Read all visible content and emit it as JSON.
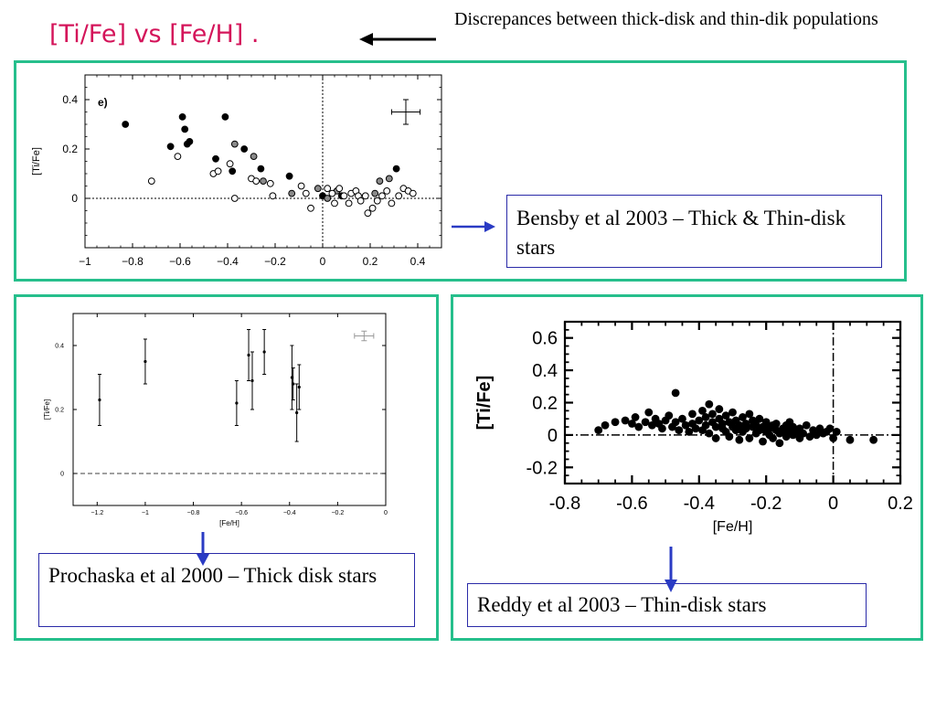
{
  "title": "[Ti/Fe] vs [Fe/H] .",
  "note": "Discrepances between thick-disk and thin-dik populations",
  "captions": {
    "bensby": "Bensby et al 2003 – Thick & Thin-disk stars",
    "prochaska": "Prochaska et al 2000 – Thick disk stars",
    "reddy": "Reddy et al 2003 – Thin-disk stars"
  },
  "colors": {
    "panel_border": "#26bf8c",
    "title": "#d4145a",
    "arrow": "#2a3bc4",
    "caption_border": "#2a2aa8"
  },
  "chart_data": [
    {
      "id": "bensby",
      "type": "scatter",
      "panel_label": "e)",
      "ylabel": "[Ti/Fe]",
      "xlim": [
        -1,
        0.5
      ],
      "ylim": [
        -0.2,
        0.5
      ],
      "xticks": [
        "−1",
        "−0.8",
        "−0.6",
        "−0.4",
        "−0.2",
        "0",
        "0.2",
        "0.4"
      ],
      "xtick_values": [
        -1,
        -0.8,
        -0.6,
        -0.4,
        -0.2,
        0,
        0.2,
        0.4
      ],
      "yticks": [
        "0",
        "0.2",
        "0.4"
      ],
      "ytick_values": [
        0,
        0.2,
        0.4
      ],
      "reference_lines": {
        "y": 0,
        "x": 0
      },
      "error_bar": {
        "x": 0.35,
        "y": 0.35,
        "xerr": 0.06,
        "yerr": 0.05
      },
      "series": [
        {
          "marker": "filled",
          "points": [
            [
              -0.83,
              0.3
            ],
            [
              -0.64,
              0.21
            ],
            [
              -0.59,
              0.33
            ],
            [
              -0.58,
              0.28
            ],
            [
              -0.57,
              0.22
            ],
            [
              -0.56,
              0.23
            ],
            [
              -0.45,
              0.16
            ],
            [
              -0.41,
              0.33
            ],
            [
              -0.38,
              0.11
            ],
            [
              -0.33,
              0.2
            ],
            [
              -0.26,
              0.12
            ],
            [
              -0.14,
              0.09
            ],
            [
              0.0,
              0.01
            ],
            [
              0.08,
              0.01
            ],
            [
              0.31,
              0.12
            ]
          ]
        },
        {
          "marker": "grey",
          "points": [
            [
              -0.37,
              0.22
            ],
            [
              -0.29,
              0.17
            ],
            [
              -0.25,
              0.07
            ],
            [
              -0.13,
              0.02
            ],
            [
              -0.02,
              0.04
            ],
            [
              0.02,
              0.0
            ],
            [
              0.06,
              0.03
            ],
            [
              0.22,
              0.02
            ],
            [
              0.24,
              0.07
            ],
            [
              0.28,
              0.08
            ]
          ]
        },
        {
          "marker": "open",
          "points": [
            [
              -0.72,
              0.07
            ],
            [
              -0.61,
              0.17
            ],
            [
              -0.46,
              0.1
            ],
            [
              -0.44,
              0.11
            ],
            [
              -0.39,
              0.14
            ],
            [
              -0.37,
              0.0
            ],
            [
              -0.3,
              0.08
            ],
            [
              -0.28,
              0.07
            ],
            [
              -0.22,
              0.06
            ],
            [
              -0.21,
              0.01
            ],
            [
              -0.09,
              0.05
            ],
            [
              -0.07,
              0.02
            ],
            [
              -0.05,
              -0.04
            ],
            [
              0.02,
              0.04
            ],
            [
              0.04,
              0.02
            ],
            [
              0.05,
              -0.02
            ],
            [
              0.07,
              0.04
            ],
            [
              0.09,
              0.01
            ],
            [
              0.11,
              -0.02
            ],
            [
              0.12,
              0.02
            ],
            [
              0.14,
              0.03
            ],
            [
              0.15,
              0.01
            ],
            [
              0.16,
              -0.01
            ],
            [
              0.18,
              0.01
            ],
            [
              0.19,
              -0.06
            ],
            [
              0.21,
              -0.04
            ],
            [
              0.23,
              -0.01
            ],
            [
              0.25,
              0.01
            ],
            [
              0.27,
              0.03
            ],
            [
              0.29,
              -0.02
            ],
            [
              0.32,
              0.01
            ],
            [
              0.34,
              0.04
            ],
            [
              0.36,
              0.03
            ],
            [
              0.38,
              0.02
            ]
          ]
        }
      ]
    },
    {
      "id": "prochaska",
      "type": "scatter",
      "xlabel": "[Fe/H]",
      "ylabel": "[Ti/Fe]",
      "xlim": [
        -1.3,
        0
      ],
      "ylim": [
        -0.1,
        0.5
      ],
      "xticks": [
        "−1.2",
        "−1",
        "−0.8",
        "−0.6",
        "−0.4",
        "−0.2",
        "0"
      ],
      "xtick_values": [
        -1.2,
        -1,
        -0.8,
        -0.6,
        -0.4,
        -0.2,
        0
      ],
      "yticks": [
        "0",
        "0.2",
        "0.4"
      ],
      "ytick_values": [
        0,
        0.2,
        0.4
      ],
      "reference_lines": {
        "y": 0
      },
      "error_bar": {
        "x": -0.09,
        "y": 0.43,
        "xerr": 0.04,
        "yerr": 0.015
      },
      "points": [
        {
          "x": -1.19,
          "y": 0.23,
          "err": 0.08
        },
        {
          "x": -1.0,
          "y": 0.35,
          "err": 0.07
        },
        {
          "x": -0.62,
          "y": 0.22,
          "err": 0.07
        },
        {
          "x": -0.57,
          "y": 0.37,
          "err": 0.08
        },
        {
          "x": -0.555,
          "y": 0.29,
          "err": 0.09
        },
        {
          "x": -0.505,
          "y": 0.38,
          "err": 0.07
        },
        {
          "x": -0.39,
          "y": 0.3,
          "err": 0.1
        },
        {
          "x": -0.385,
          "y": 0.28,
          "err": 0.05
        },
        {
          "x": -0.37,
          "y": 0.19,
          "err": 0.09
        },
        {
          "x": -0.36,
          "y": 0.27,
          "err": 0.07
        }
      ]
    },
    {
      "id": "reddy",
      "type": "scatter",
      "xlabel": "[Fe/H]",
      "ylabel": "[Ti/Fe]",
      "xlim": [
        -0.8,
        0.2
      ],
      "ylim": [
        -0.3,
        0.7
      ],
      "xticks": [
        "-0.8",
        "-0.6",
        "-0.4",
        "-0.2",
        "0",
        "0.2"
      ],
      "xtick_values": [
        -0.8,
        -0.6,
        -0.4,
        -0.2,
        0,
        0.2
      ],
      "yticks": [
        "-0.2",
        "0",
        "0.2",
        "0.4",
        "0.6"
      ],
      "ytick_values": [
        -0.2,
        0,
        0.2,
        0.4,
        0.6
      ],
      "reference_lines": {
        "y": 0,
        "x": 0
      },
      "points": [
        [
          -0.7,
          0.03
        ],
        [
          -0.68,
          0.06
        ],
        [
          -0.65,
          0.08
        ],
        [
          -0.62,
          0.09
        ],
        [
          -0.6,
          0.07
        ],
        [
          -0.59,
          0.11
        ],
        [
          -0.58,
          0.05
        ],
        [
          -0.56,
          0.08
        ],
        [
          -0.55,
          0.14
        ],
        [
          -0.54,
          0.06
        ],
        [
          -0.53,
          0.1
        ],
        [
          -0.52,
          0.07
        ],
        [
          -0.51,
          0.04
        ],
        [
          -0.5,
          0.09
        ],
        [
          -0.49,
          0.12
        ],
        [
          -0.48,
          0.05
        ],
        [
          -0.47,
          0.26
        ],
        [
          -0.47,
          0.08
        ],
        [
          -0.46,
          0.03
        ],
        [
          -0.45,
          0.1
        ],
        [
          -0.44,
          0.06
        ],
        [
          -0.43,
          0.02
        ],
        [
          -0.42,
          0.13
        ],
        [
          -0.42,
          0.07
        ],
        [
          -0.41,
          0.04
        ],
        [
          -0.4,
          0.09
        ],
        [
          -0.39,
          0.15
        ],
        [
          -0.39,
          0.03
        ],
        [
          -0.38,
          0.11
        ],
        [
          -0.38,
          0.06
        ],
        [
          -0.37,
          0.19
        ],
        [
          -0.37,
          0.01
        ],
        [
          -0.36,
          0.08
        ],
        [
          -0.36,
          0.13
        ],
        [
          -0.35,
          0.05
        ],
        [
          -0.35,
          -0.02
        ],
        [
          -0.34,
          0.1
        ],
        [
          -0.34,
          0.16
        ],
        [
          -0.33,
          0.04
        ],
        [
          -0.33,
          0.07
        ],
        [
          -0.32,
          0.02
        ],
        [
          -0.32,
          0.12
        ],
        [
          -0.31,
          0.08
        ],
        [
          -0.31,
          -0.01
        ],
        [
          -0.3,
          0.05
        ],
        [
          -0.3,
          0.14
        ],
        [
          -0.29,
          0.03
        ],
        [
          -0.29,
          0.09
        ],
        [
          -0.28,
          0.06
        ],
        [
          -0.28,
          -0.03
        ],
        [
          -0.27,
          0.11
        ],
        [
          -0.27,
          0.02
        ],
        [
          -0.26,
          0.07
        ],
        [
          -0.26,
          0.04
        ],
        [
          -0.25,
          0.13
        ],
        [
          -0.25,
          -0.02
        ],
        [
          -0.24,
          0.05
        ],
        [
          -0.24,
          0.09
        ],
        [
          -0.23,
          0.01
        ],
        [
          -0.23,
          0.06
        ],
        [
          -0.22,
          0.03
        ],
        [
          -0.22,
          0.1
        ],
        [
          -0.21,
          -0.04
        ],
        [
          -0.21,
          0.05
        ],
        [
          -0.2,
          0.02
        ],
        [
          -0.2,
          0.08
        ],
        [
          -0.19,
          0.0
        ],
        [
          -0.19,
          0.04
        ],
        [
          -0.18,
          0.06
        ],
        [
          -0.18,
          -0.02
        ],
        [
          -0.17,
          0.03
        ],
        [
          -0.17,
          0.07
        ],
        [
          -0.16,
          0.01
        ],
        [
          -0.16,
          -0.05
        ],
        [
          -0.15,
          0.04
        ],
        [
          -0.15,
          0.02
        ],
        [
          -0.14,
          0.06
        ],
        [
          -0.14,
          -0.01
        ],
        [
          -0.13,
          0.03
        ],
        [
          -0.13,
          0.08
        ],
        [
          -0.12,
          0.0
        ],
        [
          -0.12,
          0.05
        ],
        [
          -0.11,
          0.02
        ],
        [
          -0.1,
          -0.02
        ],
        [
          -0.1,
          0.04
        ],
        [
          -0.09,
          0.01
        ],
        [
          -0.08,
          0.06
        ],
        [
          -0.07,
          -0.01
        ],
        [
          -0.06,
          0.03
        ],
        [
          -0.05,
          0.0
        ],
        [
          -0.04,
          0.04
        ],
        [
          -0.03,
          0.01
        ],
        [
          -0.02,
          0.02
        ],
        [
          -0.01,
          0.04
        ],
        [
          0.0,
          -0.02
        ],
        [
          0.01,
          0.02
        ],
        [
          0.05,
          -0.03
        ],
        [
          0.12,
          -0.03
        ]
      ]
    }
  ]
}
